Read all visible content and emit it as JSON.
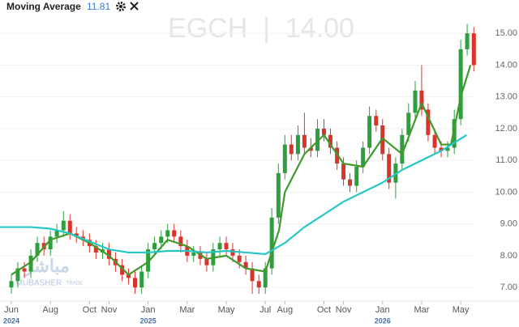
{
  "header": {
    "indicator": "Moving Average",
    "indicator_value": "11.81"
  },
  "watermark": {
    "symbol_price": "EGCH  |  14.00",
    "logo_arabic": "مباشر",
    "logo_latin": "MUBASHER",
    "logo_trade": "TRADE"
  },
  "chart_data": {
    "type": "candlestick",
    "x": [
      0,
      0.33,
      0.67,
      1,
      1.33,
      1.67,
      2,
      2.33,
      2.67,
      3,
      3.33,
      3.67,
      4,
      4.33,
      4.67,
      5,
      5.33,
      5.67,
      6,
      6.33,
      6.67,
      7,
      7.33,
      7.67,
      8,
      8.33,
      8.67,
      9,
      9.33,
      9.67,
      10,
      10.33,
      10.67,
      11,
      11.33,
      11.67,
      12,
      12.33,
      12.67,
      13,
      13.33,
      13.67,
      14,
      14.33,
      14.67,
      15,
      15.33,
      15.67,
      16,
      16.33,
      16.67,
      17,
      17.33,
      17.67,
      18,
      18.33,
      18.67,
      19,
      19.33,
      19.67,
      20,
      20.33,
      20.67,
      21,
      21.33,
      21.67,
      22,
      22.33,
      22.67,
      23,
      23.33,
      23.67
    ],
    "open": [
      7.0,
      7.2,
      7.6,
      7.5,
      8.0,
      8.4,
      8.2,
      8.6,
      8.8,
      9.1,
      8.7,
      8.6,
      8.5,
      8.3,
      8.1,
      8.2,
      7.9,
      7.7,
      7.4,
      7.3,
      7.0,
      7.5,
      8.2,
      8.4,
      8.6,
      8.8,
      8.6,
      8.3,
      8.0,
      8.1,
      7.9,
      7.7,
      8.2,
      8.4,
      8.2,
      8.0,
      7.8,
      7.6,
      7.2,
      7.0,
      7.6,
      9.2,
      10.6,
      11.5,
      11.2,
      11.8,
      11.4,
      11.3,
      12.0,
      11.8,
      11.4,
      10.9,
      10.4,
      10.2,
      10.8,
      11.4,
      12.4,
      12.1,
      11.2,
      10.3,
      10.9,
      11.8,
      12.5,
      13.2,
      12.6,
      11.8,
      11.4,
      11.3,
      11.4,
      12.3,
      14.5,
      15.0
    ],
    "high": [
      7.4,
      7.8,
      7.8,
      8.2,
      8.6,
      8.6,
      8.8,
      9.0,
      9.4,
      9.3,
      8.9,
      8.8,
      8.7,
      8.5,
      8.4,
      8.4,
      8.1,
      7.9,
      7.6,
      7.5,
      7.7,
      8.4,
      8.6,
      8.8,
      9.0,
      9.0,
      8.8,
      8.5,
      8.3,
      8.3,
      8.1,
      8.4,
      8.6,
      8.6,
      8.4,
      8.2,
      8.0,
      7.8,
      7.4,
      7.8,
      9.5,
      10.9,
      11.8,
      11.8,
      12.1,
      12.5,
      11.7,
      12.3,
      12.3,
      12.0,
      11.6,
      11.1,
      10.6,
      11.0,
      11.6,
      12.7,
      12.6,
      12.3,
      11.4,
      11.1,
      12.0,
      12.8,
      13.5,
      14.0,
      12.8,
      12.0,
      11.6,
      11.6,
      12.6,
      14.8,
      15.3,
      15.2
    ],
    "low": [
      6.8,
      7.0,
      7.3,
      7.3,
      7.8,
      8.0,
      8.0,
      8.4,
      8.6,
      8.5,
      8.4,
      8.3,
      8.1,
      7.9,
      7.9,
      7.7,
      7.5,
      7.2,
      7.1,
      6.8,
      6.8,
      7.3,
      8.0,
      8.2,
      8.4,
      8.4,
      8.1,
      7.8,
      7.8,
      7.7,
      7.5,
      7.5,
      8.0,
      8.0,
      7.8,
      7.6,
      7.4,
      6.8,
      6.8,
      6.8,
      7.4,
      9.0,
      10.4,
      11.0,
      11.0,
      11.2,
      11.1,
      11.1,
      11.6,
      11.2,
      10.7,
      10.2,
      10.0,
      10.0,
      10.6,
      11.2,
      11.9,
      11.0,
      10.1,
      9.8,
      10.7,
      11.6,
      12.3,
      12.4,
      11.6,
      11.2,
      11.1,
      11.1,
      11.2,
      12.1,
      14.3,
      13.8
    ],
    "close": [
      7.2,
      7.6,
      7.5,
      8.0,
      8.4,
      8.2,
      8.6,
      8.8,
      9.1,
      8.7,
      8.6,
      8.5,
      8.3,
      8.1,
      8.2,
      7.9,
      7.7,
      7.4,
      7.3,
      7.0,
      7.5,
      8.2,
      8.4,
      8.6,
      8.8,
      8.6,
      8.3,
      8.0,
      8.1,
      7.9,
      7.7,
      8.2,
      8.4,
      8.2,
      8.0,
      7.8,
      7.6,
      7.2,
      7.0,
      7.6,
      9.2,
      10.6,
      11.5,
      11.2,
      11.8,
      11.4,
      11.3,
      12.0,
      11.8,
      11.4,
      10.9,
      10.4,
      10.2,
      10.8,
      11.4,
      12.4,
      12.1,
      11.2,
      10.3,
      10.9,
      11.8,
      12.5,
      13.2,
      12.6,
      11.8,
      11.4,
      11.3,
      11.4,
      12.3,
      14.5,
      15.0,
      14.0
    ],
    "up_color": "#2e9e3e",
    "down_color": "#d9342b",
    "lines": [
      {
        "color": "#3f9a2c",
        "x": [
          0,
          1,
          2,
          3,
          4,
          5,
          6,
          7,
          8,
          9,
          10,
          11,
          12,
          13,
          13.7,
          14,
          15,
          16,
          17,
          18,
          19,
          20,
          21,
          22,
          22.5,
          23,
          23.5
        ],
        "values": [
          7.4,
          7.8,
          8.5,
          8.7,
          8.4,
          8.0,
          7.4,
          7.8,
          8.5,
          8.3,
          7.9,
          8.0,
          7.6,
          7.5,
          8.8,
          10.0,
          11.2,
          11.8,
          10.9,
          10.8,
          11.7,
          11.2,
          12.8,
          11.5,
          11.5,
          13.0,
          14.0
        ]
      },
      {
        "color": "#26c6c6",
        "x": [
          -0.58,
          1,
          2,
          3,
          4,
          5,
          6,
          7,
          8,
          9,
          10,
          11,
          12,
          13,
          14,
          15,
          16,
          17,
          18,
          19,
          20,
          21,
          22,
          23.3
        ],
        "values": [
          8.9,
          8.9,
          8.85,
          8.7,
          8.45,
          8.2,
          8.1,
          8.1,
          8.15,
          8.15,
          8.1,
          8.15,
          8.1,
          8.05,
          8.4,
          8.9,
          9.3,
          9.7,
          10.0,
          10.3,
          10.7,
          11.0,
          11.3,
          11.8
        ]
      }
    ],
    "xlim": [
      -0.58,
      23.7
    ],
    "xticks": [
      {
        "value": 0,
        "label": "Jun"
      },
      {
        "value": 2,
        "label": "Aug"
      },
      {
        "value": 4,
        "label": "Oct"
      },
      {
        "value": 5,
        "label": "Nov"
      },
      {
        "value": 7,
        "label": "Jan"
      },
      {
        "value": 9,
        "label": "Mar"
      },
      {
        "value": 11,
        "label": "May"
      },
      {
        "value": 13,
        "label": "Jul"
      },
      {
        "value": 14,
        "label": "Aug"
      },
      {
        "value": 16,
        "label": "Oct"
      },
      {
        "value": 17,
        "label": "Nov"
      },
      {
        "value": 19,
        "label": "Jan"
      },
      {
        "value": 21,
        "label": "Mar"
      },
      {
        "value": 23,
        "label": "May"
      }
    ],
    "year_ticks": [
      {
        "value": 0,
        "label": "2024"
      },
      {
        "value": 7,
        "label": "2025"
      },
      {
        "value": 19,
        "label": "2026"
      }
    ],
    "ylim": [
      6.57,
      16.05
    ],
    "yticks": [
      {
        "value": 7,
        "label": "7.00"
      },
      {
        "value": 8,
        "label": "8.00"
      },
      {
        "value": 9,
        "label": "9.00"
      },
      {
        "value": 10,
        "label": "10.00"
      },
      {
        "value": 11,
        "label": "11.00"
      },
      {
        "value": 12,
        "label": "12.00"
      },
      {
        "value": 13,
        "label": "13.00"
      },
      {
        "value": 14,
        "label": "14.00"
      },
      {
        "value": 15,
        "label": "15.00"
      }
    ],
    "grid": true
  }
}
